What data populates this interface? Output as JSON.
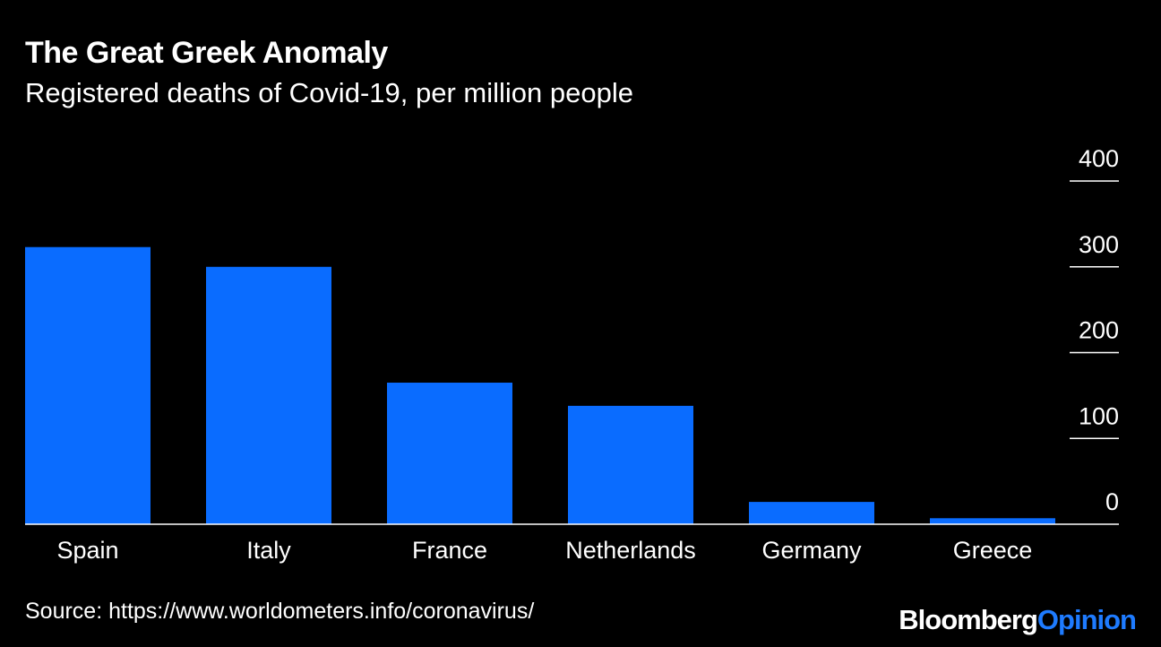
{
  "chart_data": {
    "type": "bar",
    "title": "The Great Greek Anomaly",
    "subtitle": "Registered deaths of Covid-19, per million people",
    "categories": [
      "Spain",
      "Italy",
      "France",
      "Netherlands",
      "Germany",
      "Greece"
    ],
    "values": [
      323,
      300,
      165,
      138,
      26,
      7
    ],
    "ylim": [
      0,
      400
    ],
    "yticks": [
      "0",
      "100",
      "200",
      "300",
      "400"
    ],
    "ytick_values": [
      0,
      100,
      200,
      300,
      400
    ],
    "yaxis_position": "right",
    "grid": false,
    "bar_color": "#0a6cff",
    "source": "Source: https://www.worldometers.info/coronavirus/"
  },
  "branding": {
    "brand": "Bloomberg",
    "product": "Opinion",
    "brand_color": "#ffffff",
    "product_color": "#1e7bff"
  }
}
